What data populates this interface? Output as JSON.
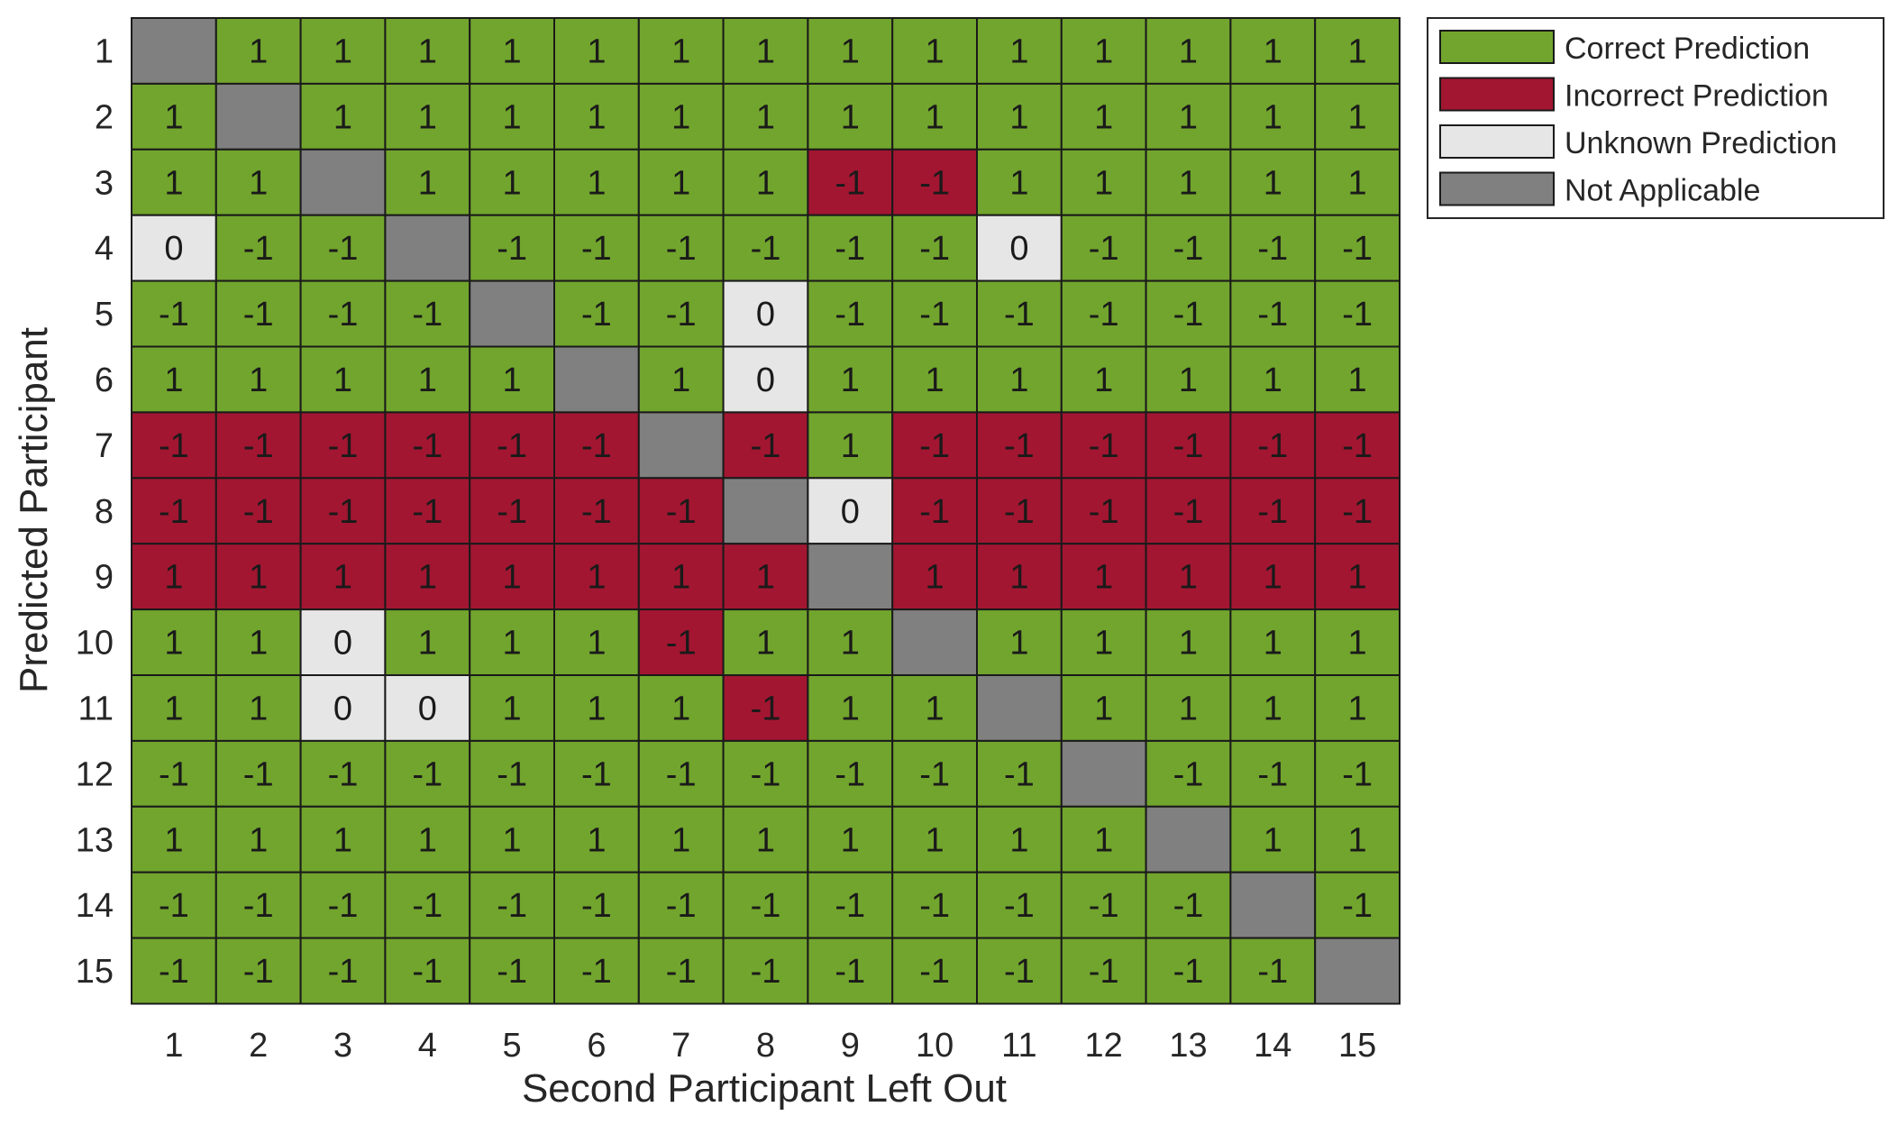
{
  "chart_data": {
    "type": "heatmap",
    "xlabel": "Second Participant Left Out",
    "ylabel": "Predicted Participant",
    "x_categories": [
      "1",
      "2",
      "3",
      "4",
      "5",
      "6",
      "7",
      "8",
      "9",
      "10",
      "11",
      "12",
      "13",
      "14",
      "15"
    ],
    "y_categories": [
      "1",
      "2",
      "3",
      "4",
      "5",
      "6",
      "7",
      "8",
      "9",
      "10",
      "11",
      "12",
      "13",
      "14",
      "15"
    ],
    "values": [
      [
        null,
        1,
        1,
        1,
        1,
        1,
        1,
        1,
        1,
        1,
        1,
        1,
        1,
        1,
        1
      ],
      [
        1,
        null,
        1,
        1,
        1,
        1,
        1,
        1,
        1,
        1,
        1,
        1,
        1,
        1,
        1
      ],
      [
        1,
        1,
        null,
        1,
        1,
        1,
        1,
        1,
        -1,
        -1,
        1,
        1,
        1,
        1,
        1
      ],
      [
        0,
        -1,
        -1,
        null,
        -1,
        -1,
        -1,
        -1,
        -1,
        -1,
        0,
        -1,
        -1,
        -1,
        -1
      ],
      [
        -1,
        -1,
        -1,
        -1,
        null,
        -1,
        -1,
        0,
        -1,
        -1,
        -1,
        -1,
        -1,
        -1,
        -1
      ],
      [
        1,
        1,
        1,
        1,
        1,
        null,
        1,
        0,
        1,
        1,
        1,
        1,
        1,
        1,
        1
      ],
      [
        -1,
        -1,
        -1,
        -1,
        -1,
        -1,
        null,
        -1,
        1,
        -1,
        -1,
        -1,
        -1,
        -1,
        -1
      ],
      [
        -1,
        -1,
        -1,
        -1,
        -1,
        -1,
        -1,
        null,
        0,
        -1,
        -1,
        -1,
        -1,
        -1,
        -1
      ],
      [
        1,
        1,
        1,
        1,
        1,
        1,
        1,
        1,
        null,
        1,
        1,
        1,
        1,
        1,
        1
      ],
      [
        1,
        1,
        0,
        1,
        1,
        1,
        -1,
        1,
        1,
        null,
        1,
        1,
        1,
        1,
        1
      ],
      [
        1,
        1,
        0,
        0,
        1,
        1,
        1,
        -1,
        1,
        1,
        null,
        1,
        1,
        1,
        1
      ],
      [
        -1,
        -1,
        -1,
        -1,
        -1,
        -1,
        -1,
        -1,
        -1,
        -1,
        -1,
        null,
        -1,
        -1,
        -1
      ],
      [
        1,
        1,
        1,
        1,
        1,
        1,
        1,
        1,
        1,
        1,
        1,
        1,
        null,
        1,
        1
      ],
      [
        -1,
        -1,
        -1,
        -1,
        -1,
        -1,
        -1,
        -1,
        -1,
        -1,
        -1,
        -1,
        -1,
        null,
        -1
      ],
      [
        -1,
        -1,
        -1,
        -1,
        -1,
        -1,
        -1,
        -1,
        -1,
        -1,
        -1,
        -1,
        -1,
        -1,
        null
      ]
    ],
    "status": [
      [
        "N",
        "C",
        "C",
        "C",
        "C",
        "C",
        "C",
        "C",
        "C",
        "C",
        "C",
        "C",
        "C",
        "C",
        "C"
      ],
      [
        "C",
        "N",
        "C",
        "C",
        "C",
        "C",
        "C",
        "C",
        "C",
        "C",
        "C",
        "C",
        "C",
        "C",
        "C"
      ],
      [
        "C",
        "C",
        "N",
        "C",
        "C",
        "C",
        "C",
        "C",
        "I",
        "I",
        "C",
        "C",
        "C",
        "C",
        "C"
      ],
      [
        "U",
        "C",
        "C",
        "N",
        "C",
        "C",
        "C",
        "C",
        "C",
        "C",
        "U",
        "C",
        "C",
        "C",
        "C"
      ],
      [
        "C",
        "C",
        "C",
        "C",
        "N",
        "C",
        "C",
        "U",
        "C",
        "C",
        "C",
        "C",
        "C",
        "C",
        "C"
      ],
      [
        "C",
        "C",
        "C",
        "C",
        "C",
        "N",
        "C",
        "U",
        "C",
        "C",
        "C",
        "C",
        "C",
        "C",
        "C"
      ],
      [
        "I",
        "I",
        "I",
        "I",
        "I",
        "I",
        "N",
        "I",
        "C",
        "I",
        "I",
        "I",
        "I",
        "I",
        "I"
      ],
      [
        "I",
        "I",
        "I",
        "I",
        "I",
        "I",
        "I",
        "N",
        "U",
        "I",
        "I",
        "I",
        "I",
        "I",
        "I"
      ],
      [
        "I",
        "I",
        "I",
        "I",
        "I",
        "I",
        "I",
        "I",
        "N",
        "I",
        "I",
        "I",
        "I",
        "I",
        "I"
      ],
      [
        "C",
        "C",
        "U",
        "C",
        "C",
        "C",
        "I",
        "C",
        "C",
        "N",
        "C",
        "C",
        "C",
        "C",
        "C"
      ],
      [
        "C",
        "C",
        "U",
        "U",
        "C",
        "C",
        "C",
        "I",
        "C",
        "C",
        "N",
        "C",
        "C",
        "C",
        "C"
      ],
      [
        "C",
        "C",
        "C",
        "C",
        "C",
        "C",
        "C",
        "C",
        "C",
        "C",
        "C",
        "N",
        "C",
        "C",
        "C"
      ],
      [
        "C",
        "C",
        "C",
        "C",
        "C",
        "C",
        "C",
        "C",
        "C",
        "C",
        "C",
        "C",
        "N",
        "C",
        "C"
      ],
      [
        "C",
        "C",
        "C",
        "C",
        "C",
        "C",
        "C",
        "C",
        "C",
        "C",
        "C",
        "C",
        "C",
        "N",
        "C"
      ],
      [
        "C",
        "C",
        "C",
        "C",
        "C",
        "C",
        "C",
        "C",
        "C",
        "C",
        "C",
        "C",
        "C",
        "C",
        "N"
      ]
    ],
    "legend": {
      "position": "top-right",
      "entries": [
        {
          "key": "C",
          "label": "Correct Prediction",
          "color": "#72a52d"
        },
        {
          "key": "I",
          "label": "Incorrect Prediction",
          "color": "#a21631"
        },
        {
          "key": "U",
          "label": "Unknown Prediction",
          "color": "#e6e6e6"
        },
        {
          "key": "N",
          "label": "Not Applicable",
          "color": "#808080"
        }
      ]
    }
  }
}
